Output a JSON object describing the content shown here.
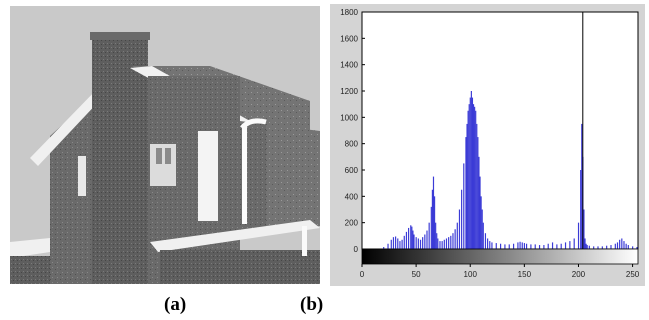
{
  "captions": {
    "a": "(a)",
    "b": "(b)"
  },
  "colors": {
    "bar": "#3b3bd6",
    "axis": "#000000",
    "panel_bg": "#d4d4d4",
    "plot_bg": "#ffffff"
  },
  "chart_data": {
    "type": "bar",
    "title": "",
    "xlabel": "",
    "ylabel": "",
    "xlim": [
      0,
      255
    ],
    "ylim": [
      0,
      1800
    ],
    "xticks": [
      "0",
      "50",
      "100",
      "150",
      "200",
      "250"
    ],
    "yticks": [
      "0",
      "200",
      "400",
      "600",
      "800",
      "1000",
      "1200",
      "1400",
      "1600",
      "1800"
    ],
    "grayscale_colorbar": true,
    "x": [
      20,
      24,
      27,
      29,
      31,
      33,
      35,
      37,
      39,
      41,
      43,
      45,
      46,
      47,
      48,
      50,
      52,
      54,
      56,
      58,
      60,
      62,
      64,
      65,
      66,
      67,
      68,
      69,
      70,
      72,
      74,
      76,
      78,
      80,
      82,
      84,
      86,
      88,
      90,
      92,
      94,
      96,
      97,
      98,
      99,
      100,
      101,
      102,
      103,
      104,
      105,
      106,
      107,
      108,
      109,
      110,
      111,
      112,
      114,
      116,
      118,
      120,
      124,
      128,
      132,
      136,
      140,
      144,
      146,
      148,
      150,
      152,
      156,
      160,
      164,
      168,
      172,
      176,
      180,
      184,
      188,
      192,
      196,
      200,
      202,
      203,
      204,
      205,
      206,
      207,
      208,
      210,
      214,
      218,
      222,
      226,
      230,
      234,
      236,
      238,
      240,
      242,
      244,
      246,
      250,
      254
    ],
    "y": [
      15,
      40,
      70,
      90,
      95,
      80,
      60,
      70,
      100,
      130,
      160,
      180,
      170,
      140,
      110,
      90,
      80,
      70,
      90,
      110,
      140,
      200,
      320,
      450,
      550,
      400,
      200,
      120,
      80,
      60,
      60,
      70,
      80,
      90,
      100,
      120,
      150,
      200,
      300,
      450,
      650,
      850,
      950,
      1050,
      1100,
      1150,
      1200,
      1150,
      1100,
      1080,
      1050,
      950,
      850,
      700,
      550,
      400,
      300,
      200,
      120,
      80,
      60,
      50,
      45,
      40,
      35,
      35,
      40,
      50,
      55,
      50,
      45,
      40,
      35,
      35,
      30,
      30,
      40,
      50,
      35,
      40,
      50,
      60,
      80,
      200,
      600,
      950,
      700,
      300,
      80,
      40,
      30,
      25,
      20,
      20,
      20,
      25,
      30,
      40,
      50,
      70,
      80,
      60,
      40,
      30,
      20,
      15
    ],
    "marker_line_x": 204
  }
}
